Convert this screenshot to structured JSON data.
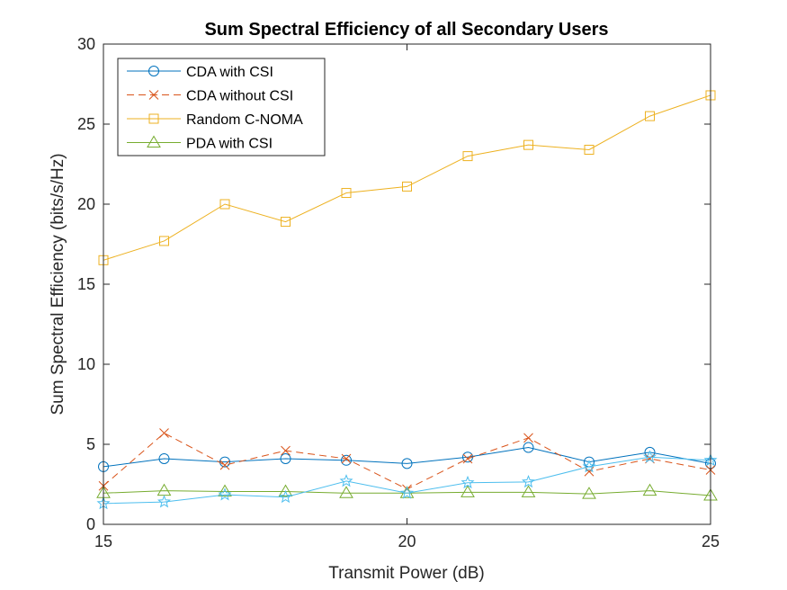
{
  "chart_data": {
    "type": "line",
    "title": "Sum Spectral Efficiency of all Secondary Users",
    "xlabel": "Transmit Power (dB)",
    "ylabel": "Sum Spectral Efficiency (bits/s/Hz)",
    "xlim": [
      15,
      25
    ],
    "ylim": [
      0,
      30
    ],
    "xticks": [
      15,
      20,
      25
    ],
    "yticks": [
      0,
      5,
      10,
      15,
      20,
      25,
      30
    ],
    "grid": false,
    "legend_position": "top-left",
    "x": [
      15,
      16,
      17,
      18,
      19,
      20,
      21,
      22,
      23,
      24,
      25
    ],
    "series": [
      {
        "name": "CDA with CSI",
        "color": "#0072BD",
        "marker": "circle",
        "dash": "solid",
        "in_legend": true,
        "values": [
          3.6,
          4.1,
          3.9,
          4.1,
          4.0,
          3.8,
          4.2,
          4.8,
          3.9,
          4.5,
          3.8
        ]
      },
      {
        "name": "CDA without CSI",
        "color": "#D95319",
        "marker": "x",
        "dash": "dashed",
        "in_legend": true,
        "values": [
          2.4,
          5.7,
          3.7,
          4.6,
          4.1,
          2.2,
          4.1,
          5.4,
          3.3,
          4.1,
          3.4
        ]
      },
      {
        "name": "Random C-NOMA",
        "color": "#EDB120",
        "marker": "square",
        "dash": "solid",
        "in_legend": true,
        "values": [
          16.5,
          17.7,
          20.0,
          18.9,
          20.7,
          21.1,
          23.0,
          23.7,
          23.4,
          25.5,
          26.8
        ]
      },
      {
        "name": "PDA with CSI",
        "color": "#77AC30",
        "marker": "triangle",
        "dash": "solid",
        "in_legend": true,
        "values": [
          1.95,
          2.1,
          2.05,
          2.05,
          1.95,
          1.95,
          2.0,
          2.0,
          1.9,
          2.1,
          1.8
        ]
      },
      {
        "name": "",
        "color": "#4DBEEE",
        "marker": "star",
        "dash": "solid",
        "in_legend": false,
        "values": [
          1.3,
          1.4,
          1.85,
          1.7,
          2.7,
          1.95,
          2.6,
          2.65,
          3.6,
          4.2,
          4.0
        ]
      }
    ]
  }
}
